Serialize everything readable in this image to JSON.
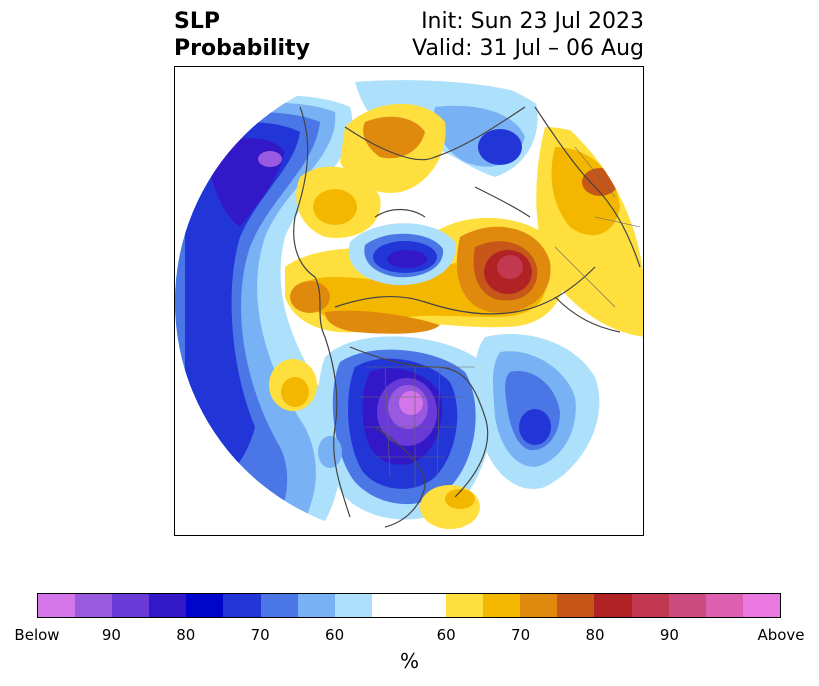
{
  "title": {
    "left_line1": "SLP",
    "left_line2": "Probability",
    "right_line1": "Init: Sun 23 Jul 2023",
    "right_line2": "Valid: 31 Jul – 06 Aug"
  },
  "colorbar": {
    "unit": "%",
    "segments": [
      {
        "color": "#d476e9",
        "weight": 1
      },
      {
        "color": "#9a5ae0",
        "weight": 1
      },
      {
        "color": "#6a3ad8",
        "weight": 1
      },
      {
        "color": "#3318c8",
        "weight": 1
      },
      {
        "color": "#0005cc",
        "weight": 1
      },
      {
        "color": "#2236d8",
        "weight": 1
      },
      {
        "color": "#4a76e6",
        "weight": 1
      },
      {
        "color": "#78b2f4",
        "weight": 1
      },
      {
        "color": "#ade0fb",
        "weight": 1
      },
      {
        "color": "#ffffff",
        "weight": 2
      },
      {
        "color": "#ffdf3e",
        "weight": 1
      },
      {
        "color": "#f4b700",
        "weight": 1
      },
      {
        "color": "#e08a0d",
        "weight": 1
      },
      {
        "color": "#c65718",
        "weight": 1
      },
      {
        "color": "#b02224",
        "weight": 1
      },
      {
        "color": "#c13850",
        "weight": 1
      },
      {
        "color": "#cd4c80",
        "weight": 1
      },
      {
        "color": "#dc5fb0",
        "weight": 1
      },
      {
        "color": "#e979e0",
        "weight": 1
      }
    ],
    "tick_labels": [
      "Below",
      "90",
      "80",
      "70",
      "60",
      "60",
      "70",
      "80",
      "90",
      "Above"
    ]
  },
  "colors": {
    "land_outline": "#444444",
    "frame": "#000000"
  }
}
